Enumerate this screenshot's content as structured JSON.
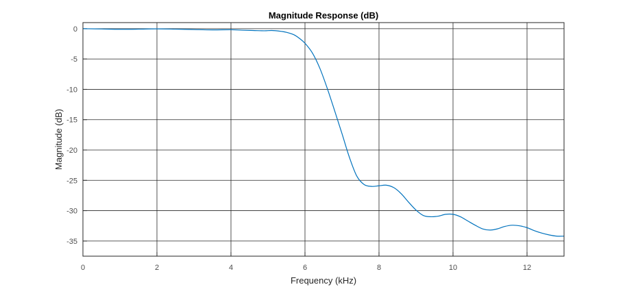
{
  "chart_data": {
    "type": "line",
    "title": "Magnitude Response (dB)",
    "xlabel": "Frequency (kHz)",
    "ylabel": "Magnitude (dB)",
    "xlim": [
      0,
      13
    ],
    "ylim": [
      -37.5,
      1
    ],
    "xticks": [
      0,
      2,
      4,
      6,
      8,
      10,
      12
    ],
    "yticks": [
      0,
      -5,
      -10,
      -15,
      -20,
      -25,
      -30,
      -35
    ],
    "xtick_labels": [
      "0",
      "2",
      "4",
      "6",
      "8",
      "10",
      "12"
    ],
    "ytick_labels": [
      "0",
      "-5",
      "-10",
      "-15",
      "-20",
      "-25",
      "-30",
      "-35"
    ],
    "grid": true,
    "colors": {
      "line": "#0072BD",
      "grid": "#262626",
      "axes": "#262626"
    },
    "series": [
      {
        "x": [
          0,
          0.5,
          1,
          1.5,
          2,
          2.5,
          3,
          3.5,
          4,
          4.3,
          4.6,
          4.9,
          5.1,
          5.3,
          5.5,
          5.7,
          5.85,
          6,
          6.2,
          6.4,
          6.6,
          6.8,
          7,
          7.2,
          7.4,
          7.6,
          7.8,
          8,
          8.2,
          8.4,
          8.6,
          8.8,
          9,
          9.2,
          9.4,
          9.6,
          9.8,
          10,
          10.2,
          10.4,
          10.6,
          10.8,
          11,
          11.2,
          11.4,
          11.6,
          11.8,
          12,
          12.2,
          12.4,
          12.6,
          12.8,
          13
        ],
        "y": [
          0,
          -0.05,
          -0.1,
          -0.08,
          -0.03,
          -0.08,
          -0.15,
          -0.2,
          -0.18,
          -0.25,
          -0.3,
          -0.35,
          -0.3,
          -0.4,
          -0.6,
          -1.0,
          -1.6,
          -2.4,
          -4.0,
          -6.5,
          -9.8,
          -13.5,
          -17.3,
          -21.2,
          -24.3,
          -25.7,
          -26.0,
          -25.9,
          -25.8,
          -26.2,
          -27.2,
          -28.6,
          -29.9,
          -30.8,
          -31.0,
          -30.9,
          -30.6,
          -30.6,
          -31.0,
          -31.7,
          -32.4,
          -33.0,
          -33.2,
          -33.0,
          -32.6,
          -32.4,
          -32.5,
          -32.8,
          -33.3,
          -33.7,
          -34.0,
          -34.2,
          -34.2
        ]
      }
    ]
  }
}
